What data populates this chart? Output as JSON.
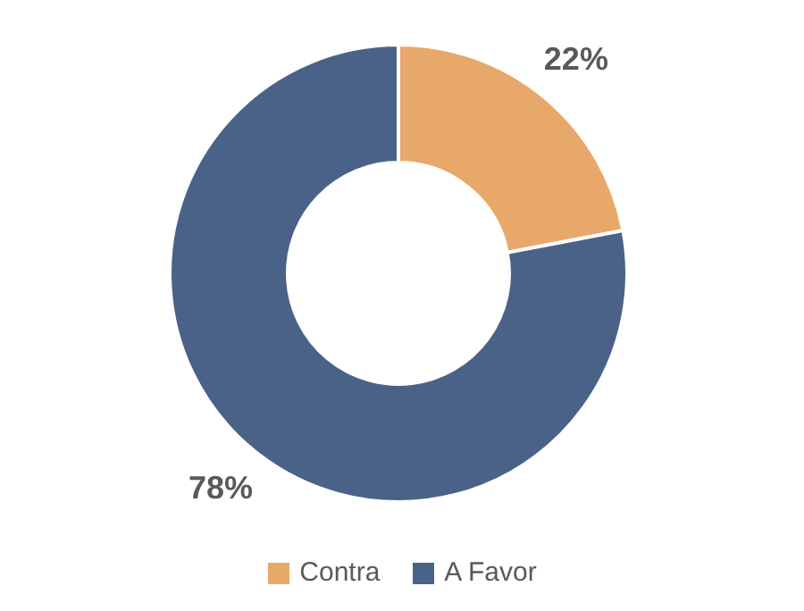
{
  "chart_data": {
    "type": "donut",
    "categories": [
      "Contra",
      "A Favor"
    ],
    "values": [
      22,
      78
    ],
    "colors": [
      "#e8a86a",
      "#4a6288"
    ],
    "value_labels": [
      "22%",
      "78%"
    ],
    "legend": "bottom"
  }
}
